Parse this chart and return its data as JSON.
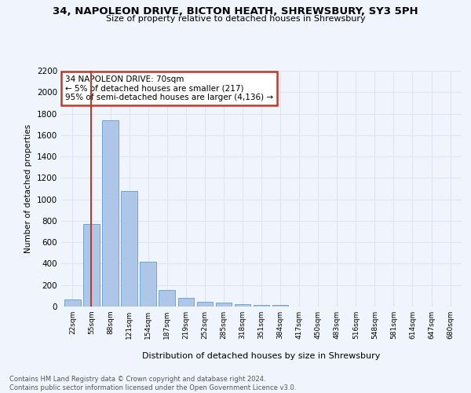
{
  "title": "34, NAPOLEON DRIVE, BICTON HEATH, SHREWSBURY, SY3 5PH",
  "subtitle": "Size of property relative to detached houses in Shrewsbury",
  "xlabel": "Distribution of detached houses by size in Shrewsbury",
  "ylabel": "Number of detached properties",
  "bin_labels": [
    "22sqm",
    "55sqm",
    "88sqm",
    "121sqm",
    "154sqm",
    "187sqm",
    "219sqm",
    "252sqm",
    "285sqm",
    "318sqm",
    "351sqm",
    "384sqm",
    "417sqm",
    "450sqm",
    "483sqm",
    "516sqm",
    "548sqm",
    "581sqm",
    "614sqm",
    "647sqm",
    "680sqm"
  ],
  "bar_values": [
    65,
    770,
    1740,
    1075,
    415,
    155,
    80,
    47,
    38,
    25,
    15,
    15,
    0,
    0,
    0,
    0,
    0,
    0,
    0,
    0,
    0
  ],
  "bar_color": "#aec6e8",
  "bar_edge_color": "#5a9fd4",
  "vline_x": 1.0,
  "vline_color": "#c0392b",
  "annotation_title": "34 NAPOLEON DRIVE: 70sqm",
  "annotation_line1": "← 5% of detached houses are smaller (217)",
  "annotation_line2": "95% of semi-detached houses are larger (4,136) →",
  "annotation_box_color": "#ffffff",
  "annotation_box_edge_color": "#c0392b",
  "ylim": [
    0,
    2200
  ],
  "yticks": [
    0,
    200,
    400,
    600,
    800,
    1000,
    1200,
    1400,
    1600,
    1800,
    2000,
    2200
  ],
  "grid_color": "#dce6f4",
  "footer_line1": "Contains HM Land Registry data © Crown copyright and database right 2024.",
  "footer_line2": "Contains public sector information licensed under the Open Government Licence v3.0.",
  "bg_color": "#f0f4fc"
}
